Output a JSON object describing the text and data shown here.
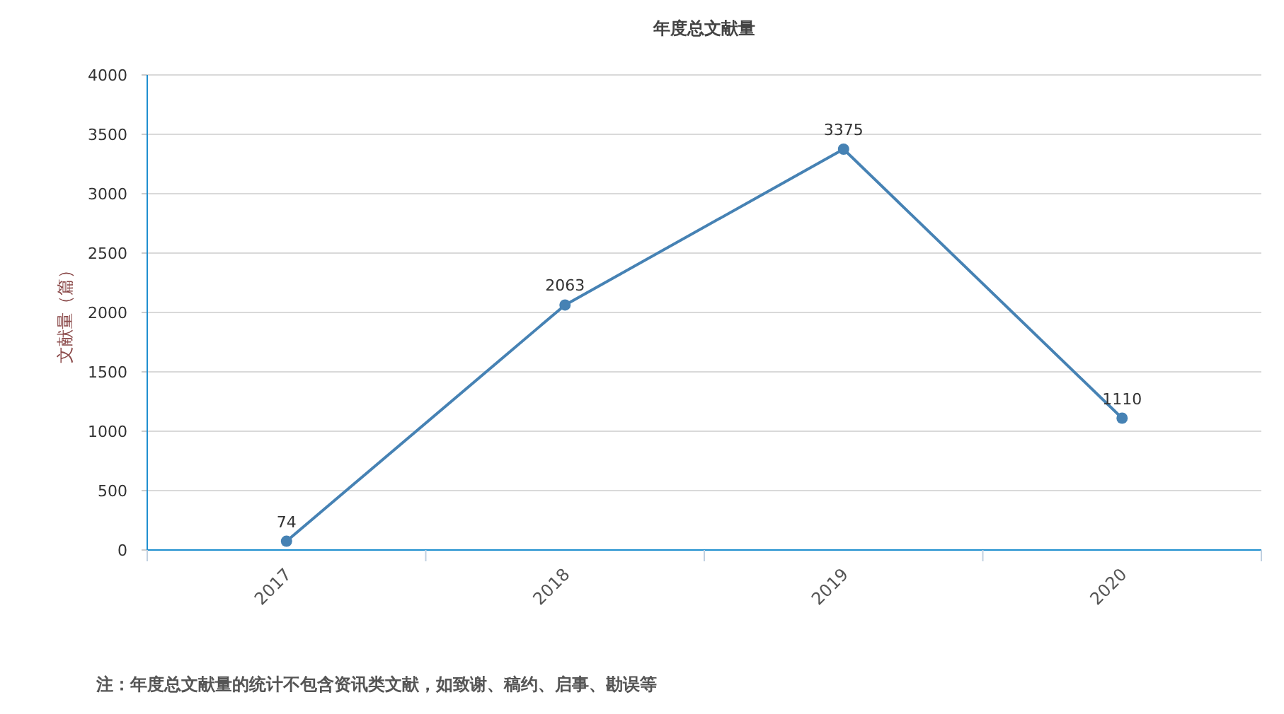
{
  "chart_data": {
    "type": "line",
    "title": "年度总文献量",
    "ylabel": "文献量（篇）",
    "categories": [
      "2017",
      "2018",
      "2019",
      "2020"
    ],
    "series": [
      {
        "color": "#4682b4",
        "values": [
          74,
          2063,
          3375,
          1110
        ]
      }
    ],
    "ylim": [
      0,
      4000
    ],
    "yticks": [
      0,
      500,
      1000,
      1500,
      2000,
      2500,
      3000,
      3500,
      4000
    ],
    "grid": "y",
    "marker": "circle",
    "data_labels": true,
    "annotations": [
      "注：年度总文献量的统计不包含资讯类文献，如致谢、稿约、启事、勘误等"
    ]
  }
}
